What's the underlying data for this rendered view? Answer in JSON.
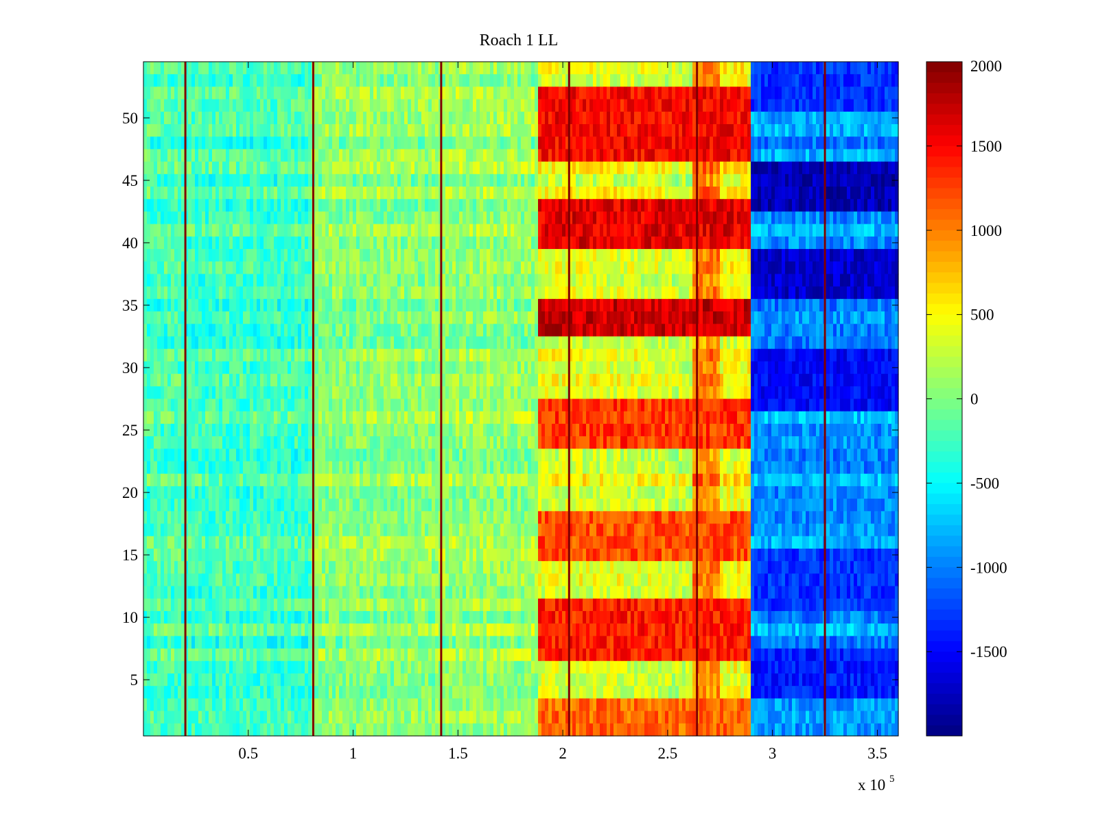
{
  "chart_data": {
    "type": "heatmap",
    "title": "Roach 1 LL",
    "xlabel": "",
    "ylabel": "",
    "x_exponent_label": {
      "base": "x 10",
      "exponent": "5"
    },
    "xlim": [
      0,
      360000
    ],
    "ylim": [
      0.5,
      54.5
    ],
    "xticks": [
      {
        "value": 50000,
        "label": "0.5"
      },
      {
        "value": 100000,
        "label": "1"
      },
      {
        "value": 150000,
        "label": "1.5"
      },
      {
        "value": 200000,
        "label": "2"
      },
      {
        "value": 250000,
        "label": "2.5"
      },
      {
        "value": 300000,
        "label": "3"
      },
      {
        "value": 350000,
        "label": "3.5"
      }
    ],
    "yticks": [
      {
        "value": 5,
        "label": "5"
      },
      {
        "value": 10,
        "label": "10"
      },
      {
        "value": 15,
        "label": "15"
      },
      {
        "value": 20,
        "label": "20"
      },
      {
        "value": 25,
        "label": "25"
      },
      {
        "value": 30,
        "label": "30"
      },
      {
        "value": 35,
        "label": "35"
      },
      {
        "value": 40,
        "label": "40"
      },
      {
        "value": 45,
        "label": "45"
      },
      {
        "value": 50,
        "label": "50"
      }
    ],
    "colormap": "jet",
    "clim": [
      -2000,
      2000
    ],
    "colorbar": {
      "location": "right",
      "ticks": [
        {
          "value": 2000,
          "label": "2000"
        },
        {
          "value": 1500,
          "label": "1500"
        },
        {
          "value": 1000,
          "label": "1000"
        },
        {
          "value": 500,
          "label": "500"
        },
        {
          "value": 0,
          "label": "0"
        },
        {
          "value": -500,
          "label": "-500"
        },
        {
          "value": -1000,
          "label": "-1000"
        },
        {
          "value": -1500,
          "label": "-1500"
        }
      ]
    },
    "rows": 54,
    "segments": [
      {
        "x_start": 0,
        "x_end": 20000,
        "base": -200
      },
      {
        "x_start": 20000,
        "x_end": 80000,
        "base": -250
      },
      {
        "x_start": 80000,
        "x_end": 141000,
        "base": 50
      },
      {
        "x_start": 141000,
        "x_end": 188000,
        "base": 100
      },
      {
        "x_start": 188000,
        "x_end": 228000,
        "base": 400
      },
      {
        "x_start": 228000,
        "x_end": 250000,
        "base": 350
      },
      {
        "x_start": 250000,
        "x_end": 262000,
        "base": 300
      },
      {
        "x_start": 262000,
        "x_end": 275000,
        "base": 1000
      },
      {
        "x_start": 275000,
        "x_end": 290000,
        "base": 500
      },
      {
        "x_start": 290000,
        "x_end": 325000,
        "base": -900
      },
      {
        "x_start": 325000,
        "x_end": 360000,
        "base": -900
      }
    ],
    "boundary_lines_x": [
      20000,
      81000,
      142000,
      203000,
      264000,
      325000
    ],
    "boundary_line_value": 2000,
    "hot_row_bands": [
      {
        "rows": [
          47,
          52
        ],
        "value": 1500
      },
      {
        "rows": [
          40,
          43
        ],
        "value": 1600
      },
      {
        "rows": [
          33,
          35
        ],
        "value": 1700
      },
      {
        "rows": [
          24,
          27
        ],
        "value": 1300
      },
      {
        "rows": [
          15,
          18
        ],
        "value": 1200
      },
      {
        "rows": [
          7,
          11
        ],
        "value": 1400
      },
      {
        "rows": [
          1,
          3
        ],
        "value": 1100
      }
    ],
    "cold_row_bands": [
      {
        "rows": [
          43,
          46
        ],
        "value": -1800
      },
      {
        "rows": [
          36,
          39
        ],
        "value": -1700
      },
      {
        "rows": [
          27,
          31
        ],
        "value": -1500
      },
      {
        "rows": [
          11,
          15
        ],
        "value": -1300
      },
      {
        "rows": [
          4,
          7
        ],
        "value": -1400
      },
      {
        "rows": [
          51,
          54
        ],
        "value": -1300
      }
    ]
  }
}
